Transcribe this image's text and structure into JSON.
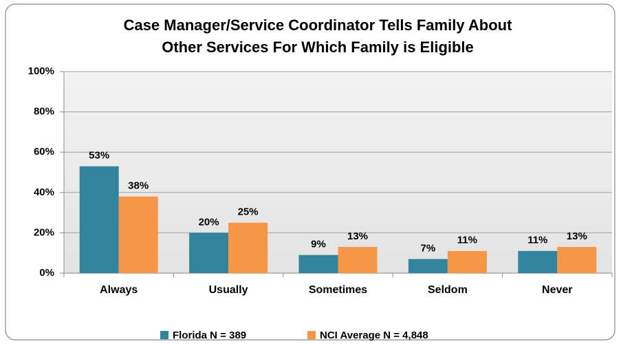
{
  "chart_data": {
    "type": "bar",
    "title": [
      "Case Manager/Service Coordinator Tells Family About",
      "Other Services For Which Family is Eligible"
    ],
    "categories": [
      "Always",
      "Usually",
      "Sometimes",
      "Seldom",
      "Never"
    ],
    "series": [
      {
        "name": "Florida N = 389",
        "color": "#31849b",
        "values": [
          53,
          20,
          9,
          7,
          11
        ],
        "value_labels": [
          "53%",
          "20%",
          "9%",
          "7%",
          "11%"
        ]
      },
      {
        "name": "NCI Average N = 4,848",
        "color": "#f79646",
        "values": [
          38,
          25,
          13,
          11,
          13
        ],
        "value_labels": [
          "38%",
          "25%",
          "13%",
          "11%",
          "13%"
        ]
      }
    ],
    "ylim": [
      0,
      100
    ],
    "yticks": [
      {
        "value": 0,
        "label": "0%"
      },
      {
        "value": 20,
        "label": "20%"
      },
      {
        "value": 40,
        "label": "40%"
      },
      {
        "value": 60,
        "label": "60%"
      },
      {
        "value": 80,
        "label": "80%"
      },
      {
        "value": 100,
        "label": "100%"
      }
    ],
    "grid": true,
    "legend": "bottom"
  }
}
